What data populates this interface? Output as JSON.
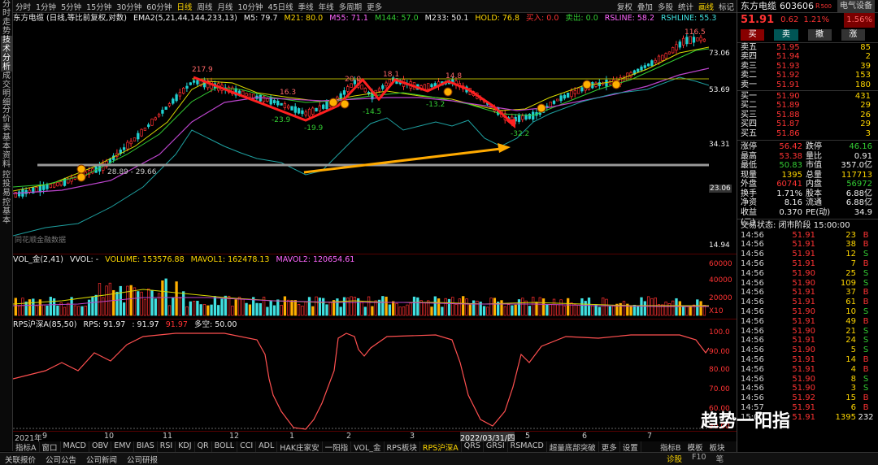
{
  "leftbar": [
    "分时走势",
    "技术分析",
    "成交明细",
    "分价表",
    "基本资料",
    "控投易",
    "控基本"
  ],
  "toolbar": {
    "periods": [
      "分时",
      "1分钟",
      "5分钟",
      "15分钟",
      "30分钟",
      "60分钟",
      "日线",
      "周线",
      "月线",
      "10分钟",
      "45日线",
      "季线",
      "年线",
      "多周期",
      "更多"
    ],
    "selected": "日线",
    "right": [
      "复权",
      "叠加",
      "多股",
      "统计",
      "画线",
      "标记"
    ],
    "right_hl": "画线"
  },
  "info1": {
    "name": "东方电缆 (日线,等比前复权,对数)",
    "ema": "EMA2(5,21,44,144,233,13)",
    "m5": "M5: 79.7",
    "m21": "M21: 80.0",
    "m55": "M55: 71.1",
    "m144": "M144: 57.0",
    "m233": "M233: 50.1",
    "hold": "HOLD: 76.8",
    "buy": "买入: 0.0",
    "sell": "卖出: 0.0",
    "rsline": "RSLINE: 58.2",
    "rshline": "RSHLINE: 55.3"
  },
  "price_axis": [
    "73.06",
    "53.69",
    "34.31",
    "23.06",
    "14.94"
  ],
  "annot": {
    "p1": "217.9",
    "p2": "16.3",
    "p3": "-23.9",
    "p4": "-19.9",
    "p5": "20.0",
    "p6": "-14.5",
    "p7": "18.1",
    "p8": "14.8",
    "p9": "-13.2",
    "p10": "-32.2",
    "p11": "116.5",
    "support": "28.89 - 29.66",
    "source": "同花顺金融数据"
  },
  "vol": {
    "name": "VOL_金(2,41)",
    "vvol": "VVOL: -",
    "volume": "VOLUME: 153576.88",
    "mavol1": "MAVOL1: 162478.13",
    "mavol2": "MAVOL2: 120654.61",
    "axis": [
      "60000",
      "40000",
      "20000",
      "X10"
    ]
  },
  "rps": {
    "name": "RPS沪深A(85,50)",
    "rps": "RPS: 91.97",
    "v2": ": 91.97",
    "v3": "91.97",
    "dk": "多空: 50.00",
    "axis": [
      "100.0",
      "90.00",
      "80.00",
      "70.00",
      "60.00",
      "50.00"
    ]
  },
  "xaxis": [
    "2021年",
    "9",
    "10",
    "11",
    "12",
    "1",
    "2",
    "3",
    "2022/03/31/四",
    "5",
    "6",
    "7"
  ],
  "bottomtabs": [
    "指标A",
    "窗口",
    "MACD",
    "OBV",
    "EMV",
    "BIAS",
    "RSI",
    "KDJ",
    "QR",
    "BOLL",
    "CCI",
    "ADL",
    "HAK庄家安",
    "一阳指",
    "VOL_金",
    "RPS板块",
    "RPS沪深A",
    "QRS",
    "GRSI",
    "RSMACD",
    "超量底部突破",
    "更多",
    "设置"
  ],
  "bottomtabs_sel": "RPS沪深A",
  "bottom_right": [
    "指标B",
    "模板",
    "板块"
  ],
  "statusbar": [
    "关联报价",
    "公司公告",
    "公司新闻",
    "公司研报"
  ],
  "status_right": [
    "诊股",
    "F10",
    "笔"
  ],
  "rp": {
    "name": "东方电缆",
    "code": "603606",
    "r": "R",
    "tag": "500",
    "industry": "电气设备",
    "price": "51.91",
    "chg": "0.62",
    "pct": "1.21%",
    "pct2": "1.56%",
    "buttons": [
      "买",
      "卖",
      "撤",
      "涨"
    ],
    "asks": [
      [
        "卖五",
        "51.95",
        "85"
      ],
      [
        "卖四",
        "51.94",
        "2"
      ],
      [
        "卖三",
        "51.93",
        "39"
      ],
      [
        "卖二",
        "51.92",
        "153"
      ],
      [
        "卖一",
        "51.91",
        "180"
      ]
    ],
    "bids": [
      [
        "买一",
        "51.90",
        "431"
      ],
      [
        "买二",
        "51.89",
        "29"
      ],
      [
        "买三",
        "51.88",
        "26"
      ],
      [
        "买四",
        "51.87",
        "29"
      ],
      [
        "买五",
        "51.86",
        "3"
      ]
    ],
    "stats": [
      [
        "涨停",
        "56.42",
        "跌停",
        "46.16"
      ],
      [
        "最高",
        "53.38",
        "量比",
        "0.91"
      ],
      [
        "最低",
        "50.83",
        "市值",
        "357.0亿"
      ],
      [
        "现量",
        "1395",
        "总量",
        "117713"
      ],
      [
        "外盘",
        "60741",
        "内盘",
        "56972"
      ],
      [
        "换手",
        "1.71%",
        "股本",
        "6.88亿"
      ],
      [
        "净资",
        "8.16",
        "流通",
        "6.88亿"
      ],
      [
        "收益(二)",
        "0.370",
        "PE(动)",
        "34.9"
      ]
    ],
    "trade_status": "交易状态: 闭市阶段 15:00:00",
    "ticks": [
      [
        "14:56",
        "51.91",
        "23",
        "B"
      ],
      [
        "14:56",
        "51.91",
        "38",
        "B"
      ],
      [
        "14:56",
        "51.91",
        "12",
        "S"
      ],
      [
        "14:56",
        "51.91",
        "7",
        "B"
      ],
      [
        "14:56",
        "51.90",
        "25",
        "S"
      ],
      [
        "14:56",
        "51.90",
        "109",
        "S"
      ],
      [
        "14:56",
        "51.91",
        "37",
        "B"
      ],
      [
        "14:56",
        "51.91",
        "61",
        "B"
      ],
      [
        "14:56",
        "51.90",
        "10",
        "S"
      ],
      [
        "14:56",
        "51.91",
        "49",
        "B"
      ],
      [
        "14:56",
        "51.90",
        "21",
        "S"
      ],
      [
        "14:56",
        "51.91",
        "24",
        "S"
      ],
      [
        "14:56",
        "51.90",
        "5",
        "S"
      ],
      [
        "14:56",
        "51.91",
        "14",
        "B"
      ],
      [
        "14:56",
        "51.91",
        "4",
        "B"
      ],
      [
        "14:56",
        "51.90",
        "8",
        "S"
      ],
      [
        "14:56",
        "51.90",
        "3",
        "S"
      ],
      [
        "14:56",
        "51.92",
        "15",
        "B"
      ],
      [
        "14:57",
        "51.91",
        "6",
        "B"
      ],
      [
        "15:00",
        "51.91",
        "1395",
        "232"
      ]
    ],
    "watermark": "趋势一阳指"
  }
}
